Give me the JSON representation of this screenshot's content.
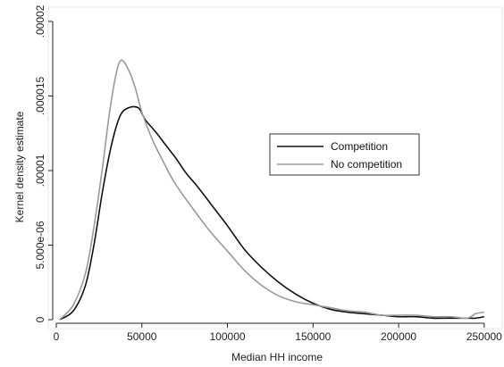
{
  "chart_data": {
    "type": "line",
    "title": "",
    "xlabel": "Median HH income",
    "ylabel": "Kernel density estimate",
    "xlim": [
      0,
      260000
    ],
    "ylim": [
      0,
      2e-05
    ],
    "x_ticks": [
      0,
      50000,
      100000,
      150000,
      200000,
      250000
    ],
    "x_tick_labels": [
      "0",
      "50000",
      "100000",
      "150000",
      "200000",
      "250000"
    ],
    "y_ticks": [
      0,
      5e-06,
      1e-05,
      1.5e-05,
      2e-05
    ],
    "y_tick_labels": [
      "0",
      "5.000e-06",
      ".00001",
      ".000015",
      ".00002"
    ],
    "grid": false,
    "legend": {
      "placement": "center-right",
      "entries": [
        "Competition",
        "No competition"
      ]
    },
    "series": [
      {
        "name": "Competition",
        "color": "#111111",
        "x": [
          2000,
          10000,
          17000,
          22000,
          27000,
          32000,
          37000,
          42000,
          48000,
          52000,
          58000,
          64000,
          70000,
          76000,
          82000,
          90000,
          100000,
          110000,
          120000,
          130000,
          140000,
          150000,
          160000,
          170000,
          180000,
          190000,
          200000,
          210000,
          220000,
          230000,
          240000,
          245000,
          250000
        ],
        "y": [
          0,
          6e-07,
          2.3e-06,
          5e-06,
          8.6e-06,
          1.16e-05,
          1.36e-05,
          1.42e-05,
          1.42e-05,
          1.34e-05,
          1.26e-05,
          1.17e-05,
          1.08e-05,
          9.8e-06,
          9e-06,
          7.8e-06,
          6.3e-06,
          4.7e-06,
          3.5e-06,
          2.5e-06,
          1.7e-06,
          1.1e-06,
          7e-07,
          5e-07,
          4e-07,
          3e-07,
          2e-07,
          2e-07,
          1e-07,
          1e-07,
          1e-07,
          1e-07,
          2e-07
        ]
      },
      {
        "name": "No competition",
        "color": "#999999",
        "x": [
          2000,
          10000,
          17000,
          22000,
          27000,
          31000,
          35000,
          38000,
          42000,
          46000,
          50000,
          56000,
          62000,
          68000,
          75000,
          82000,
          90000,
          100000,
          110000,
          120000,
          130000,
          140000,
          150000,
          160000,
          170000,
          180000,
          190000,
          200000,
          210000,
          220000,
          230000,
          240000,
          245000,
          250000
        ],
        "y": [
          0,
          1e-06,
          3.1e-06,
          6.2e-06,
          1.02e-05,
          1.38e-05,
          1.65e-05,
          1.74e-05,
          1.68e-05,
          1.56e-05,
          1.39e-05,
          1.21e-05,
          1.07e-05,
          9.4e-06,
          8.2e-06,
          7.1e-06,
          5.9e-06,
          4.6e-06,
          3.3e-06,
          2.3e-06,
          1.6e-06,
          1.2e-06,
          1e-06,
          8e-07,
          6e-07,
          5e-07,
          3e-07,
          3e-07,
          3e-07,
          2e-07,
          2e-07,
          1e-07,
          4e-07,
          5e-07
        ]
      }
    ]
  }
}
